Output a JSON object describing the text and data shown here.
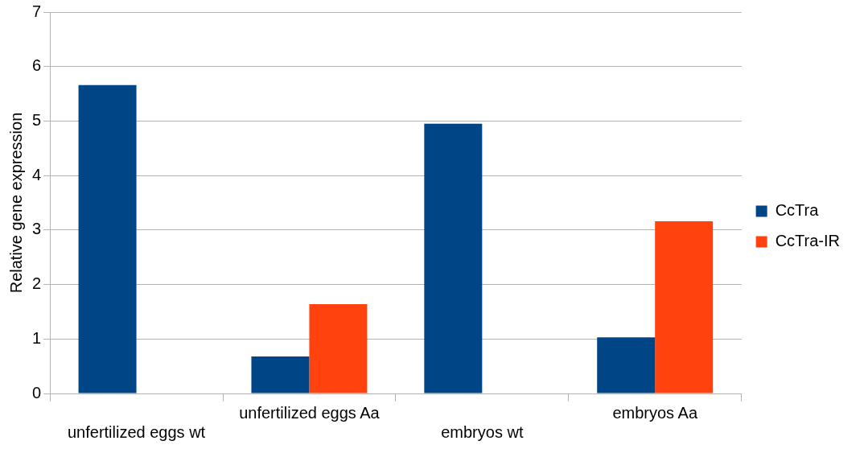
{
  "chart_data": {
    "type": "bar",
    "ylabel": "Relative gene expression",
    "categories": [
      "unfertilized eggs wt",
      "unfertilized eggs Aa",
      "embryos wt",
      "embryos Aa"
    ],
    "series": [
      {
        "name": "CcTra",
        "color": "#004586",
        "values": [
          5.66,
          0.68,
          4.95,
          1.03
        ]
      },
      {
        "name": "CcTra-IR",
        "color": "#ff420e",
        "values": [
          0,
          1.64,
          0,
          3.16
        ]
      }
    ],
    "ylim": [
      0,
      7
    ],
    "yticks": [
      0,
      1,
      2,
      3,
      4,
      5,
      6,
      7
    ],
    "grid": "y",
    "legend": "right"
  }
}
